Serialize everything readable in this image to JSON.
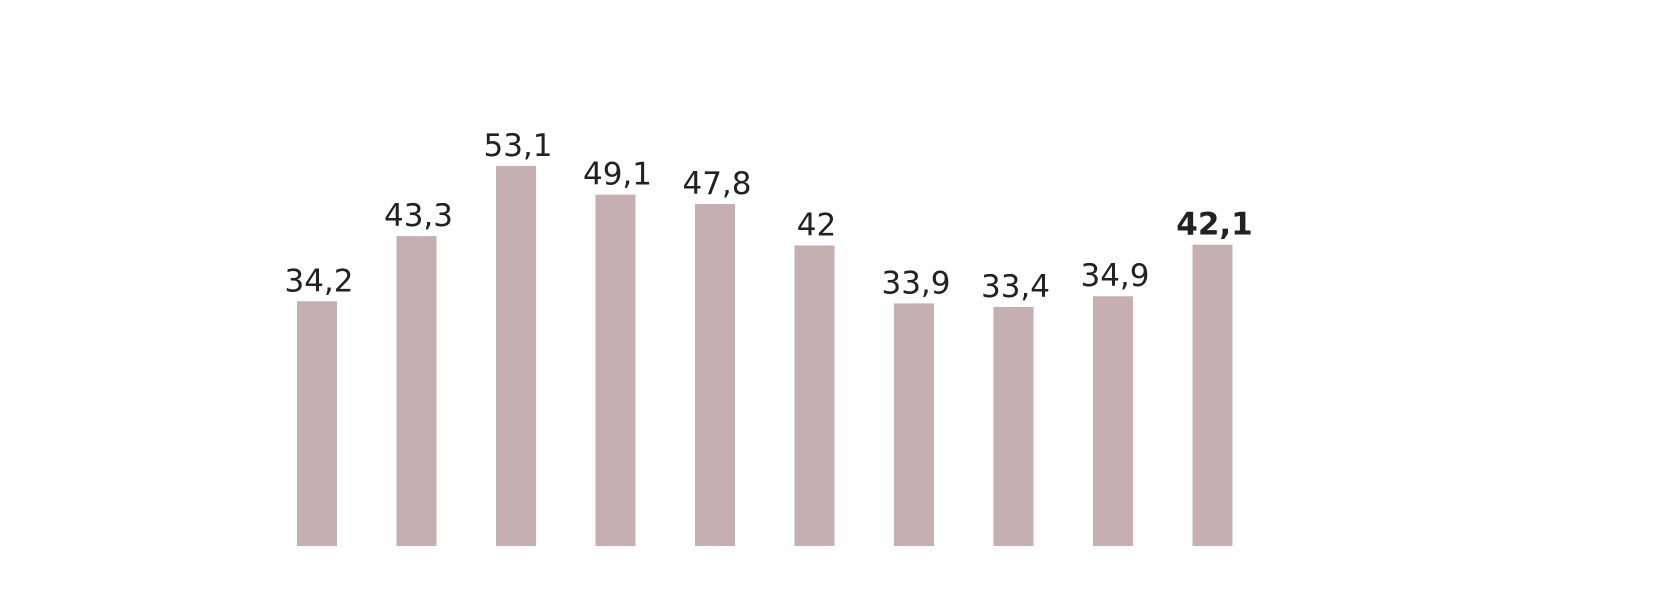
{
  "chart_data": {
    "type": "bar",
    "categories": [
      null,
      null,
      null,
      null,
      null,
      null,
      null,
      null,
      null,
      null
    ],
    "values": [
      34.2,
      43.3,
      53.1,
      49.1,
      47.8,
      42,
      33.9,
      33.4,
      34.9,
      42.1
    ],
    "value_labels": [
      "34,2",
      "43,3",
      "53,1",
      "49,1",
      "47,8",
      "42",
      "33,9",
      "33,4",
      "34,9",
      "42,1"
    ],
    "color": "#c6afb0"
  }
}
